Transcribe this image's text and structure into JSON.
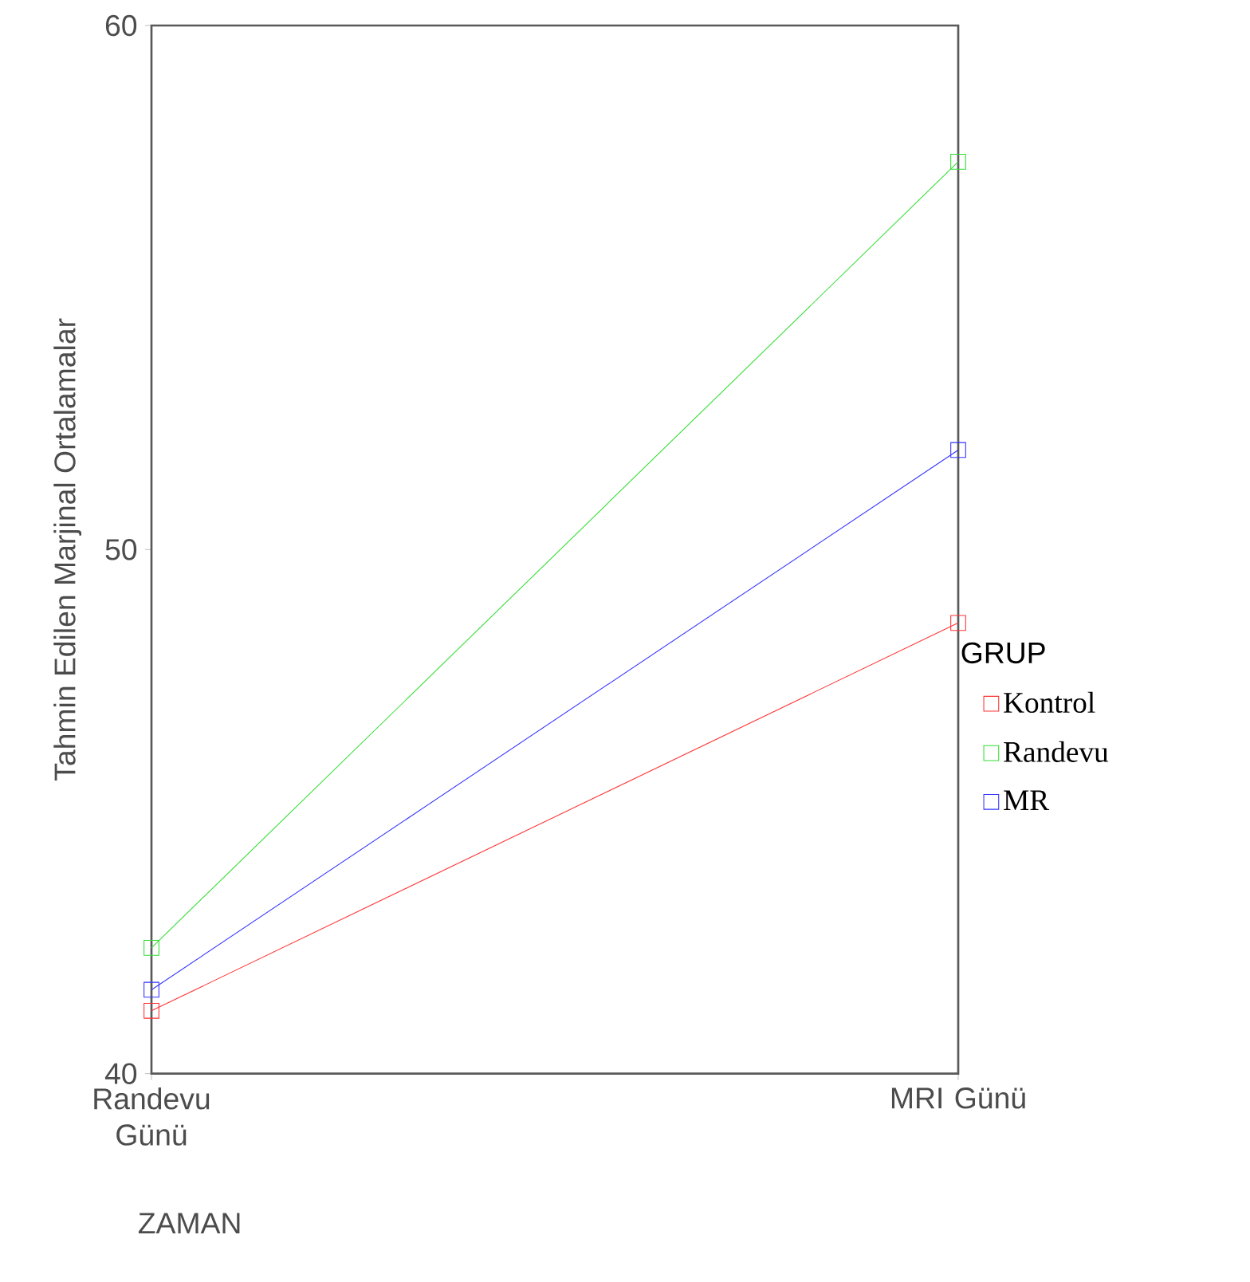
{
  "chart_data": {
    "type": "line",
    "xlabel": "ZAMAN",
    "ylabel": "Tahmin Edilen Marjinal Ortalamalar",
    "legend_title": "GRUP",
    "categories": [
      "Randevu Günü",
      "MRI Günü"
    ],
    "series": [
      {
        "name": "Kontrol",
        "color": "#ff3333",
        "values": [
          41.2,
          48.6
        ]
      },
      {
        "name": "Randevu",
        "color": "#33dd33",
        "values": [
          42.4,
          57.4
        ]
      },
      {
        "name": "MR",
        "color": "#3333ff",
        "values": [
          41.6,
          51.9
        ]
      }
    ],
    "ylim": [
      40,
      60
    ],
    "yticks": [
      40,
      50,
      60
    ],
    "grid": false,
    "legend": "right",
    "marker": "square",
    "line_style": "solid"
  }
}
